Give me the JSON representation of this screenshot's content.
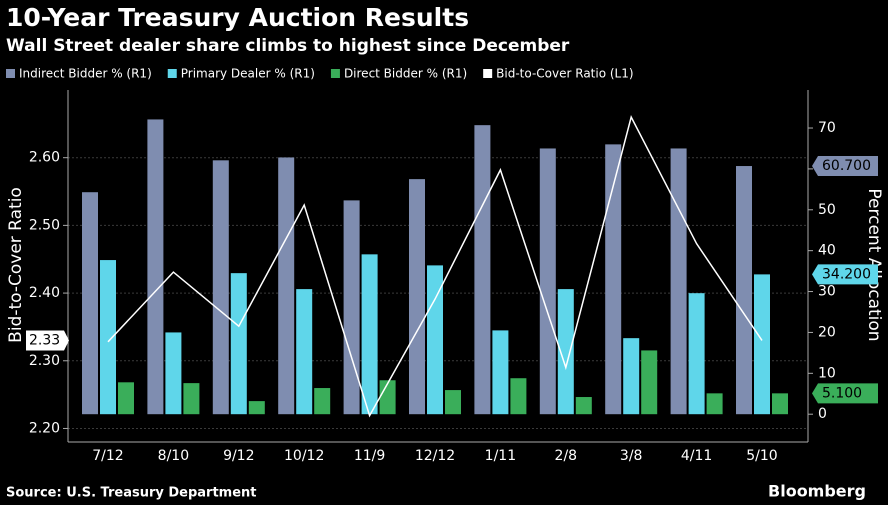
{
  "chart_data": {
    "type": "bar",
    "title": "10-Year Treasury Auction Results",
    "subtitle": "Wall Street dealer share climbs to highest since December",
    "source": "Source: U.S. Treasury Department",
    "brand": "Bloomberg",
    "ylabel": "Bid-to-Cover Ratio",
    "y2label": "Percent Allocation",
    "categories": [
      "7/12",
      "8/10",
      "9/12",
      "10/12",
      "11/9",
      "12/12",
      "1/11",
      "2/8",
      "3/8",
      "4/11",
      "5/10"
    ],
    "series": [
      {
        "name": "Indirect Bidder % (R1)",
        "color": "#7f8db0",
        "axis": "y2",
        "type": "bar",
        "values": [
          54.3,
          72.1,
          62.1,
          62.8,
          52.3,
          57.5,
          70.7,
          65.0,
          66.0,
          65.0,
          60.7
        ],
        "value_labels": [
          null,
          null,
          null,
          null,
          null,
          null,
          null,
          null,
          null,
          null,
          "60.700"
        ]
      },
      {
        "name": "Primary Dealer % (R1)",
        "color": "#5fd6ea",
        "axis": "y2",
        "type": "bar",
        "values": [
          37.7,
          20.0,
          34.5,
          30.6,
          39.1,
          36.4,
          20.5,
          30.6,
          18.6,
          29.6,
          34.2
        ],
        "value_labels": [
          null,
          null,
          null,
          null,
          null,
          null,
          null,
          null,
          null,
          null,
          "34.200"
        ]
      },
      {
        "name": "Direct Bidder % (R1)",
        "color": "#3aae5a",
        "axis": "y2",
        "type": "bar",
        "values": [
          7.8,
          7.6,
          3.2,
          6.4,
          8.3,
          5.9,
          8.8,
          4.2,
          15.6,
          5.1,
          5.1
        ],
        "value_labels": [
          null,
          null,
          null,
          null,
          null,
          null,
          null,
          null,
          null,
          null,
          "5.100"
        ]
      },
      {
        "name": "Bid-to-Cover Ratio (L1)",
        "color": "#ffffff",
        "type": "line",
        "values": [
          2.328,
          2.431,
          2.351,
          2.53,
          2.219,
          2.391,
          2.582,
          2.29,
          2.66,
          2.473,
          2.33
        ],
        "value_labels": [
          null,
          null,
          null,
          null,
          null,
          null,
          null,
          null,
          null,
          null,
          "2.33"
        ]
      }
    ],
    "ylim": [
      2.18,
      2.7
    ],
    "yticks": [
      {
        "value": 2.2,
        "label": "2.20"
      },
      {
        "value": 2.3,
        "label": "2.30"
      },
      {
        "value": 2.4,
        "label": "2.40"
      },
      {
        "value": 2.5,
        "label": "2.50"
      },
      {
        "value": 2.6,
        "label": "2.60"
      }
    ],
    "y2lim": [
      -6.8,
      79.3
    ],
    "y2ticks": [
      0,
      10,
      20,
      30,
      40,
      50,
      60,
      70
    ],
    "grid": true
  }
}
